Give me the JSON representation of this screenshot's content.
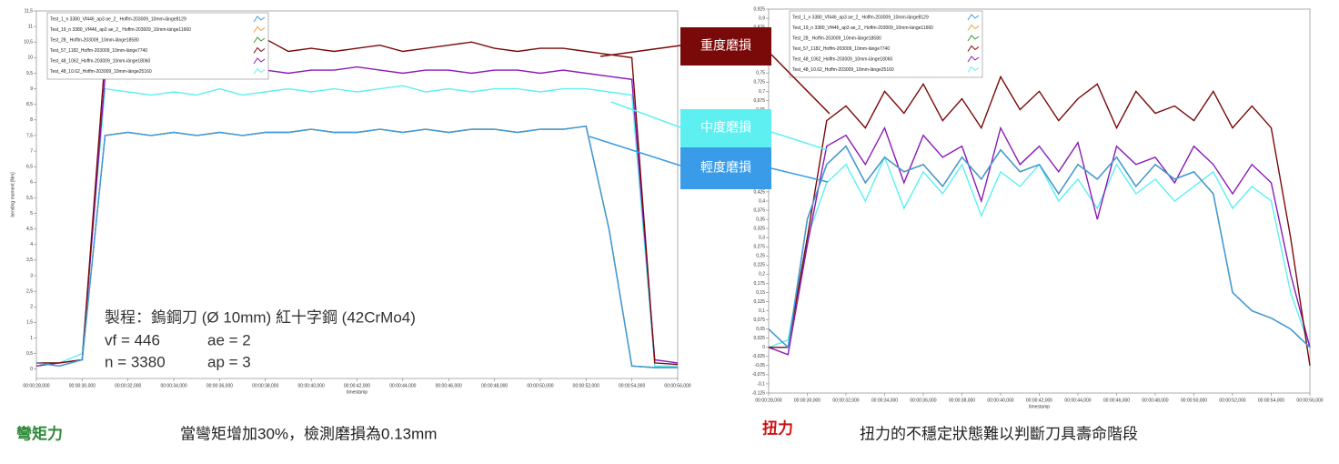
{
  "chart_data": [
    {
      "type": "line",
      "x_label": "timestamp",
      "y_label": "bending moment [Nm]",
      "x": [
        28,
        29,
        30,
        31,
        32,
        33,
        34,
        35,
        36,
        37,
        38,
        39,
        40,
        41,
        42,
        43,
        44,
        45,
        46,
        47,
        48,
        49,
        50,
        51,
        52,
        53,
        54,
        55,
        56
      ],
      "xlim": [
        28,
        56
      ],
      "xticks": [
        {
          "value": 28,
          "label": "00:00:28,000"
        },
        {
          "value": 30,
          "label": "00:00:30,000"
        },
        {
          "value": 32,
          "label": "00:00:32,000"
        },
        {
          "value": 34,
          "label": "00:00:34,000"
        },
        {
          "value": 36,
          "label": "00:00:36,000"
        },
        {
          "value": 38,
          "label": "00:00:38,000"
        },
        {
          "value": 40,
          "label": "00:00:40,000"
        },
        {
          "value": 42,
          "label": "00:00:42,000"
        },
        {
          "value": 44,
          "label": "00:00:44,000"
        },
        {
          "value": 46,
          "label": "00:00:46,000"
        },
        {
          "value": 48,
          "label": "00:00:48,000"
        },
        {
          "value": 50,
          "label": "00:00:50,000"
        },
        {
          "value": 52,
          "label": "00:00:52,000"
        },
        {
          "value": 54,
          "label": "00:00:54,000"
        },
        {
          "value": 56,
          "label": "00:00:56,000"
        }
      ],
      "ylim": [
        -0.3,
        11.5
      ],
      "yticks": [
        0,
        {
          "value": 0.5,
          "label": "0,5"
        },
        1,
        {
          "value": 1.5,
          "label": "1,5"
        },
        2,
        {
          "value": 2.5,
          "label": "2,5"
        },
        3,
        {
          "value": 3.5,
          "label": "3,5"
        },
        4,
        {
          "value": 4.5,
          "label": "4,5"
        },
        5,
        {
          "value": 5.5,
          "label": "5,5"
        },
        6,
        {
          "value": 6.5,
          "label": "6,5"
        },
        7,
        {
          "value": 7.5,
          "label": "7,5"
        },
        8,
        {
          "value": 8.5,
          "label": "8,5"
        },
        9,
        {
          "value": 9.5,
          "label": "9,5"
        },
        10,
        {
          "value": 10.5,
          "label": "10,5"
        },
        11,
        {
          "value": 11.5,
          "label": "11,5"
        }
      ],
      "series": [
        {
          "name": "Test_1_n 3380_Vf446_ap3 ae_2_ Hoffm-203009_10mm-länge8129",
          "color": "#3a9be8",
          "values": [
            0.2,
            0.1,
            0.3,
            7.5,
            7.6,
            7.5,
            7.6,
            7.5,
            7.6,
            7.5,
            7.6,
            7.6,
            7.7,
            7.6,
            7.6,
            7.7,
            7.6,
            7.7,
            7.6,
            7.7,
            7.7,
            7.6,
            7.7,
            7.7,
            7.8,
            4.5,
            0.1,
            0.05,
            0.05
          ]
        },
        {
          "name": "Test_19_n 3380_Vf446_ap3 ae_2_ Hoffm-203009_10mm-länge11660",
          "color": "#f0a030",
          "values": [
            0.2,
            0.1,
            0.3,
            7.5,
            7.6,
            7.5,
            7.6,
            7.5,
            7.6,
            7.5,
            7.6,
            7.6,
            7.7,
            7.6,
            7.6,
            7.7,
            7.6,
            7.7,
            7.6,
            7.7,
            7.7,
            7.6,
            7.7,
            7.7,
            7.8,
            4.5,
            0.1,
            0.05,
            0.05
          ]
        },
        {
          "name": "Test_28_ Hoffm-203009_10mm-länge18580",
          "color": "#3a9a3a",
          "values": [
            0.2,
            0.1,
            0.3,
            7.5,
            7.6,
            7.5,
            7.6,
            7.5,
            7.6,
            7.5,
            7.6,
            7.6,
            7.7,
            7.6,
            7.6,
            7.7,
            7.6,
            7.7,
            7.6,
            7.7,
            7.7,
            7.6,
            7.7,
            7.7,
            7.8,
            4.5,
            0.1,
            0.05,
            0.05
          ]
        },
        {
          "name": "Test_57_1182_Hoffm-203009_10mm-länge7740",
          "color": "#7a0a0a",
          "values": [
            0.2,
            0.2,
            0.3,
            10.0,
            10.1,
            10.0,
            10.2,
            10.1,
            10.3,
            10.0,
            10.6,
            10.2,
            10.3,
            10.2,
            10.3,
            10.4,
            10.2,
            10.3,
            10.4,
            10.5,
            10.3,
            10.2,
            10.3,
            10.3,
            10.2,
            10.1,
            10.0,
            0.2,
            0.15
          ]
        },
        {
          "name": "Test_48_1062_Hoffm-203009_10mm-länge18060",
          "color": "#8a1ab8",
          "values": [
            0.1,
            0.2,
            0.3,
            9.4,
            9.5,
            9.6,
            9.5,
            9.6,
            9.5,
            9.7,
            9.6,
            9.5,
            9.6,
            9.6,
            9.7,
            9.6,
            9.5,
            9.6,
            9.6,
            9.5,
            9.6,
            9.6,
            9.5,
            9.6,
            9.5,
            9.4,
            9.3,
            0.3,
            0.2
          ]
        },
        {
          "name": "Test_48_10.62_Hoffm-203009_10mm-länge25160",
          "color": "#5ef0f0",
          "values": [
            0.2,
            0.2,
            0.5,
            9.0,
            8.9,
            8.8,
            8.9,
            8.8,
            9.0,
            8.8,
            8.9,
            9.0,
            8.9,
            9.0,
            8.9,
            9.0,
            9.1,
            8.9,
            9.0,
            8.9,
            9.0,
            9.0,
            8.9,
            9.0,
            9.0,
            8.9,
            8.8,
            0.1,
            0.1
          ]
        }
      ]
    },
    {
      "type": "line",
      "x_label": "timestamp",
      "x": [
        28,
        29,
        30,
        31,
        32,
        33,
        34,
        35,
        36,
        37,
        38,
        39,
        40,
        41,
        42,
        43,
        44,
        45,
        46,
        47,
        48,
        49,
        50,
        51,
        52,
        53,
        54,
        55,
        56
      ],
      "xlim": [
        28,
        56
      ],
      "xticks": [
        {
          "value": 28,
          "label": "00:00:28,000"
        },
        {
          "value": 30,
          "label": "00:00:30,000"
        },
        {
          "value": 32,
          "label": "00:00:32,000"
        },
        {
          "value": 34,
          "label": "00:00:34,000"
        },
        {
          "value": 36,
          "label": "00:00:36,000"
        },
        {
          "value": 38,
          "label": "00:00:38,000"
        },
        {
          "value": 40,
          "label": "00:00:40,000"
        },
        {
          "value": 42,
          "label": "00:00:42,000"
        },
        {
          "value": 44,
          "label": "00:00:44,000"
        },
        {
          "value": 46,
          "label": "00:00:46,000"
        },
        {
          "value": 48,
          "label": "00:00:48,000"
        },
        {
          "value": 50,
          "label": "00:00:50,000"
        },
        {
          "value": 52,
          "label": "00:00:52,000"
        },
        {
          "value": 54,
          "label": "00:00:54,000"
        },
        {
          "value": 56,
          "label": "00:00:56,000"
        }
      ],
      "ylim": [
        -0.125,
        0.925
      ],
      "yticks": [
        {
          "value": -0.125,
          "label": "-0,125"
        },
        {
          "value": -0.1,
          "label": "-0,1"
        },
        {
          "value": -0.075,
          "label": "-0,075"
        },
        {
          "value": -0.05,
          "label": "-0,05"
        },
        {
          "value": -0.025,
          "label": "-0,025"
        },
        0,
        {
          "value": 0.025,
          "label": "0,025"
        },
        {
          "value": 0.05,
          "label": "0,05"
        },
        {
          "value": 0.075,
          "label": "0,075"
        },
        {
          "value": 0.1,
          "label": "0,1"
        },
        {
          "value": 0.125,
          "label": "0,125"
        },
        {
          "value": 0.15,
          "label": "0,15"
        },
        {
          "value": 0.175,
          "label": "0,175"
        },
        {
          "value": 0.2,
          "label": "0,2"
        },
        {
          "value": 0.225,
          "label": "0,225"
        },
        {
          "value": 0.25,
          "label": "0,25"
        },
        {
          "value": 0.275,
          "label": "0,275"
        },
        {
          "value": 0.3,
          "label": "0,3"
        },
        {
          "value": 0.325,
          "label": "0,325"
        },
        {
          "value": 0.35,
          "label": "0,35"
        },
        {
          "value": 0.375,
          "label": "0,375"
        },
        {
          "value": 0.4,
          "label": "0,4"
        },
        {
          "value": 0.425,
          "label": "0,425"
        },
        {
          "value": 0.45,
          "label": "0,45"
        },
        {
          "value": 0.475,
          "label": "0,475"
        },
        {
          "value": 0.5,
          "label": "0,5"
        },
        {
          "value": 0.525,
          "label": "0,525"
        },
        {
          "value": 0.55,
          "label": "0,55"
        },
        {
          "value": 0.575,
          "label": "0,575"
        },
        {
          "value": 0.6,
          "label": "0,6"
        },
        {
          "value": 0.625,
          "label": "0,625"
        },
        {
          "value": 0.65,
          "label": "0,65"
        },
        {
          "value": 0.675,
          "label": "0,675"
        },
        {
          "value": 0.7,
          "label": "0,7"
        },
        {
          "value": 0.725,
          "label": "0,725"
        },
        {
          "value": 0.75,
          "label": "0,75"
        },
        {
          "value": 0.775,
          "label": "0,775"
        },
        {
          "value": 0.8,
          "label": "0,8"
        },
        {
          "value": 0.825,
          "label": "0,825"
        },
        {
          "value": 0.85,
          "label": "0,85"
        },
        {
          "value": 0.875,
          "label": "0,875"
        },
        {
          "value": 0.9,
          "label": "0,9"
        },
        {
          "value": 0.925,
          "label": "0,925"
        }
      ],
      "series": [
        {
          "name": "Test_1_n 3380_Vf446_ap3 ae_2_ Hoffm-203009_10mm-länge8129",
          "color": "#3a9be8",
          "values": [
            0.05,
            0.0,
            0.35,
            0.5,
            0.55,
            0.45,
            0.52,
            0.48,
            0.5,
            0.44,
            0.52,
            0.46,
            0.54,
            0.48,
            0.5,
            0.42,
            0.5,
            0.46,
            0.52,
            0.44,
            0.5,
            0.46,
            0.48,
            0.42,
            0.15,
            0.1,
            0.08,
            0.05,
            0.0
          ]
        },
        {
          "name": "Test_19_n 3380_Vf446_ap3 ae_2_ Hoffm-203009_10mm-länge11660",
          "color": "#f0a030",
          "values": [
            0.05,
            0.0,
            0.35,
            0.5,
            0.55,
            0.45,
            0.52,
            0.48,
            0.5,
            0.44,
            0.52,
            0.46,
            0.54,
            0.48,
            0.5,
            0.42,
            0.5,
            0.46,
            0.52,
            0.44,
            0.5,
            0.46,
            0.48,
            0.42,
            0.15,
            0.1,
            0.08,
            0.05,
            0.0
          ]
        },
        {
          "name": "Test_28_ Hoffm-203009_10mm-länge18580",
          "color": "#3a9a3a",
          "values": [
            0.05,
            0.0,
            0.35,
            0.5,
            0.55,
            0.45,
            0.52,
            0.48,
            0.5,
            0.44,
            0.52,
            0.46,
            0.54,
            0.48,
            0.5,
            0.42,
            0.5,
            0.46,
            0.52,
            0.44,
            0.5,
            0.46,
            0.48,
            0.42,
            0.15,
            0.1,
            0.08,
            0.05,
            0.0
          ]
        },
        {
          "name": "Test_57_1182_Hoffm-203009_10mm-länge7740",
          "color": "#7a0a0a",
          "values": [
            0.0,
            0.0,
            0.3,
            0.62,
            0.66,
            0.6,
            0.7,
            0.64,
            0.72,
            0.62,
            0.68,
            0.6,
            0.74,
            0.65,
            0.7,
            0.62,
            0.68,
            0.72,
            0.6,
            0.7,
            0.64,
            0.66,
            0.62,
            0.7,
            0.6,
            0.66,
            0.6,
            0.3,
            -0.05
          ]
        },
        {
          "name": "Test_48_1062_Hoffm-203009_10mm-länge18060",
          "color": "#8a1ab8",
          "values": [
            0.0,
            -0.02,
            0.28,
            0.55,
            0.58,
            0.5,
            0.6,
            0.45,
            0.58,
            0.52,
            0.55,
            0.4,
            0.6,
            0.5,
            0.55,
            0.48,
            0.56,
            0.35,
            0.55,
            0.5,
            0.52,
            0.45,
            0.55,
            0.5,
            0.42,
            0.5,
            0.45,
            0.2,
            0.0
          ]
        },
        {
          "name": "Test_48_10.62_Hoffm-203009_10mm-länge25160",
          "color": "#5ef0f0",
          "values": [
            0.0,
            0.02,
            0.3,
            0.45,
            0.5,
            0.4,
            0.52,
            0.38,
            0.48,
            0.42,
            0.5,
            0.36,
            0.48,
            0.44,
            0.5,
            0.4,
            0.46,
            0.38,
            0.5,
            0.42,
            0.46,
            0.4,
            0.44,
            0.48,
            0.38,
            0.44,
            0.4,
            0.15,
            0.0
          ]
        }
      ]
    }
  ],
  "callouts": [
    "重度磨損",
    "中度磨損",
    "輕度磨損"
  ],
  "process": [
    "製程：鎢鋼刀 (Ø 10mm) 紅十字鋼 (42CrMo4)",
    "vf = 446",
    "ae = 2",
    "n = 3380",
    "ap = 3"
  ],
  "captions": {
    "left_label": "彎矩力",
    "left_text": "當彎矩增加30%，檢測磨損為0.13mm",
    "right_label": "扭力",
    "right_text": "扭力的不穩定狀態難以判斷刀具壽命階段"
  }
}
